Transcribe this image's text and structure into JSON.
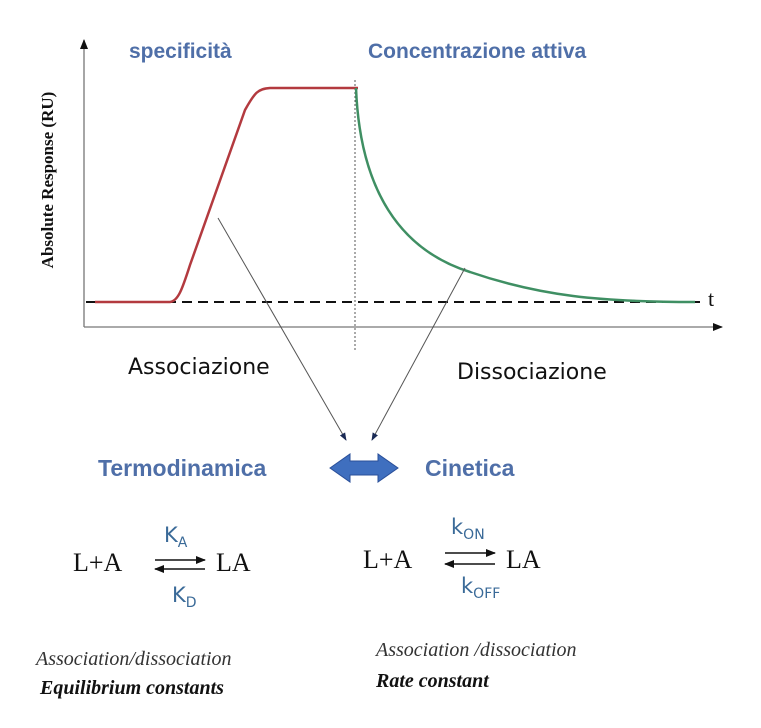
{
  "chart": {
    "ylabel": "Absolute Response (RU)",
    "xlabel": "t",
    "phase_labels": {
      "left": "specificità",
      "right": "Concentrazione attiva"
    },
    "below_labels": {
      "left": "Associazione",
      "right": "Dissociazione"
    }
  },
  "colors": {
    "association": "#b33a3f",
    "dissociation": "#3f8f63",
    "accent": "#4f6fa8",
    "double_arrow": "#3f6fbf"
  },
  "middle": {
    "left": "Termodinamica",
    "right": "Cinetica"
  },
  "equilibrium": {
    "reactants": "L+A",
    "product": "LA",
    "k_forward": "K",
    "k_forward_sub": "A",
    "k_reverse": "K",
    "k_reverse_sub": "D",
    "caption_line1": "Association/dissociation",
    "caption_line2": "Equilibrium constants"
  },
  "kinetics": {
    "reactants": "L+A",
    "product": "LA",
    "k_forward": "k",
    "k_forward_sub": "ON",
    "k_reverse": "k",
    "k_reverse_sub": "OFF",
    "caption_line1": "Association /dissociation",
    "caption_line2": "Rate constant"
  }
}
